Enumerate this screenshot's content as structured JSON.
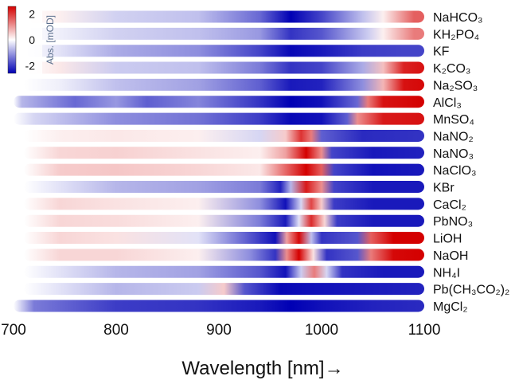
{
  "chart_data": {
    "type": "heatmap",
    "title": "",
    "xlabel": "Wavelength [nm]→",
    "ylabel": "",
    "xlim": [
      700,
      1100
    ],
    "x_ticks": [
      700,
      800,
      900,
      1000,
      1100
    ],
    "colorbar": {
      "label": "Abs. [mOD]",
      "ticks": [
        2,
        0,
        -2
      ],
      "range": [
        -2.6,
        2.6
      ],
      "colors": {
        "positive": "#d40000",
        "zero": "#ffffff",
        "negative": "#0000b4"
      }
    },
    "rows": [
      {
        "label": "NaHCO₃",
        "pattern": [
          [
            745,
            0.1
          ],
          [
            800,
            -0.35
          ],
          [
            880,
            -0.5
          ],
          [
            940,
            -1.4
          ],
          [
            970,
            -2.6
          ],
          [
            1000,
            -1.8
          ],
          [
            1040,
            -0.5
          ],
          [
            1060,
            0.1
          ],
          [
            1090,
            1.5
          ],
          [
            1100,
            1.5
          ]
        ]
      },
      {
        "label": "KH₂PO₄",
        "pattern": [
          [
            745,
            -0.1
          ],
          [
            800,
            -0.35
          ],
          [
            880,
            -0.5
          ],
          [
            940,
            -0.9
          ],
          [
            970,
            -2.0
          ],
          [
            1000,
            -1.6
          ],
          [
            1045,
            -0.4
          ],
          [
            1060,
            0.1
          ],
          [
            1090,
            1.2
          ],
          [
            1100,
            1.2
          ]
        ]
      },
      {
        "label": "KF",
        "pattern": [
          [
            745,
            -0.2
          ],
          [
            800,
            -0.7
          ],
          [
            880,
            -1.0
          ],
          [
            940,
            -1.8
          ],
          [
            970,
            -2.5
          ],
          [
            1000,
            -2.3
          ],
          [
            1040,
            -1.9
          ],
          [
            1080,
            -1.8
          ],
          [
            1100,
            -1.8
          ]
        ]
      },
      {
        "label": "K₂CO₃",
        "pattern": [
          [
            745,
            0.15
          ],
          [
            800,
            -0.4
          ],
          [
            880,
            -0.5
          ],
          [
            940,
            -1.2
          ],
          [
            970,
            -2.0
          ],
          [
            1000,
            -1.8
          ],
          [
            1040,
            -0.7
          ],
          [
            1060,
            0.5
          ],
          [
            1080,
            2.2
          ],
          [
            1100,
            2.4
          ]
        ]
      },
      {
        "label": "Na₂SO₃",
        "pattern": [
          [
            745,
            -0.1
          ],
          [
            800,
            -0.5
          ],
          [
            880,
            -0.8
          ],
          [
            940,
            -1.5
          ],
          [
            970,
            -2.3
          ],
          [
            1000,
            -2.2
          ],
          [
            1040,
            -1.0
          ],
          [
            1060,
            0.6
          ],
          [
            1080,
            2.4
          ],
          [
            1100,
            2.5
          ]
        ]
      },
      {
        "label": "AlCl₃",
        "pattern": [
          [
            708,
            -0.6
          ],
          [
            760,
            -1.4
          ],
          [
            800,
            -0.9
          ],
          [
            830,
            -1.5
          ],
          [
            880,
            -1.1
          ],
          [
            940,
            -2.0
          ],
          [
            970,
            -2.6
          ],
          [
            1000,
            -2.4
          ],
          [
            1035,
            -1.4
          ],
          [
            1045,
            1.2
          ],
          [
            1060,
            2.4
          ],
          [
            1100,
            2.6
          ]
        ]
      },
      {
        "label": "MnSO₄",
        "pattern": [
          [
            720,
            -0.3
          ],
          [
            800,
            -1.0
          ],
          [
            880,
            -1.3
          ],
          [
            940,
            -1.9
          ],
          [
            970,
            -2.5
          ],
          [
            1000,
            -2.4
          ],
          [
            1025,
            -1.5
          ],
          [
            1035,
            1.0
          ],
          [
            1060,
            2.3
          ],
          [
            1100,
            2.4
          ]
        ]
      },
      {
        "label": "NaNO₂",
        "pattern": [
          [
            745,
            0.1
          ],
          [
            800,
            0.15
          ],
          [
            880,
            0.1
          ],
          [
            940,
            -0.3
          ],
          [
            965,
            0.4
          ],
          [
            980,
            2.0
          ],
          [
            990,
            1.2
          ],
          [
            1000,
            -1.5
          ],
          [
            1040,
            -2.1
          ],
          [
            1100,
            -2.0
          ]
        ]
      },
      {
        "label": "NaNO₃",
        "pattern": [
          [
            745,
            0.3
          ],
          [
            800,
            0.35
          ],
          [
            880,
            0.2
          ],
          [
            940,
            0.1
          ],
          [
            965,
            0.8
          ],
          [
            985,
            2.6
          ],
          [
            1000,
            1.0
          ],
          [
            1010,
            -1.8
          ],
          [
            1050,
            -2.3
          ],
          [
            1100,
            -2.2
          ]
        ]
      },
      {
        "label": "NaClO₃",
        "pattern": [
          [
            745,
            0.4
          ],
          [
            800,
            0.45
          ],
          [
            880,
            0.3
          ],
          [
            940,
            0.15
          ],
          [
            965,
            1.4
          ],
          [
            985,
            2.6
          ],
          [
            1000,
            1.5
          ],
          [
            1012,
            -1.8
          ],
          [
            1050,
            -2.4
          ],
          [
            1100,
            -2.3
          ]
        ]
      },
      {
        "label": "KBr",
        "pattern": [
          [
            745,
            -0.2
          ],
          [
            800,
            -0.6
          ],
          [
            880,
            -0.8
          ],
          [
            940,
            -1.2
          ],
          [
            960,
            -2.2
          ],
          [
            970,
            -0.6
          ],
          [
            985,
            2.3
          ],
          [
            1000,
            1.0
          ],
          [
            1012,
            -1.8
          ],
          [
            1050,
            -2.3
          ],
          [
            1100,
            -2.3
          ]
        ]
      },
      {
        "label": "CaCl₂",
        "pattern": [
          [
            745,
            0.3
          ],
          [
            800,
            0.2
          ],
          [
            880,
            0.1
          ],
          [
            940,
            -1.0
          ],
          [
            965,
            -2.4
          ],
          [
            980,
            -0.3
          ],
          [
            990,
            1.8
          ],
          [
            1000,
            0.4
          ],
          [
            1012,
            -1.9
          ],
          [
            1050,
            -2.3
          ],
          [
            1100,
            -2.3
          ]
        ]
      },
      {
        "label": "PbNO₃",
        "pattern": [
          [
            745,
            0.3
          ],
          [
            800,
            0.25
          ],
          [
            880,
            0.1
          ],
          [
            940,
            -1.2
          ],
          [
            965,
            -2.3
          ],
          [
            978,
            -0.2
          ],
          [
            990,
            2.1
          ],
          [
            1003,
            0.3
          ],
          [
            1015,
            -1.9
          ],
          [
            1050,
            -2.3
          ],
          [
            1100,
            -2.3
          ]
        ]
      },
      {
        "label": "LiOH",
        "pattern": [
          [
            745,
            0.3
          ],
          [
            800,
            0.2
          ],
          [
            880,
            -0.2
          ],
          [
            930,
            -1.6
          ],
          [
            955,
            -2.4
          ],
          [
            966,
            0.8
          ],
          [
            978,
            2.5
          ],
          [
            990,
            -0.5
          ],
          [
            1000,
            -2.0
          ],
          [
            1035,
            -1.6
          ],
          [
            1048,
            1.5
          ],
          [
            1070,
            2.6
          ],
          [
            1100,
            2.6
          ]
        ]
      },
      {
        "label": "NaOH",
        "pattern": [
          [
            745,
            0.3
          ],
          [
            800,
            0.3
          ],
          [
            880,
            0.1
          ],
          [
            930,
            -1.0
          ],
          [
            955,
            -2.0
          ],
          [
            966,
            1.0
          ],
          [
            978,
            2.6
          ],
          [
            992,
            0.2
          ],
          [
            1005,
            -2.0
          ],
          [
            1035,
            -1.6
          ],
          [
            1048,
            1.2
          ],
          [
            1070,
            2.5
          ],
          [
            1100,
            2.6
          ]
        ]
      },
      {
        "label": "NH₄I",
        "pattern": [
          [
            745,
            -0.2
          ],
          [
            800,
            -0.6
          ],
          [
            880,
            -0.8
          ],
          [
            940,
            -1.6
          ],
          [
            965,
            -2.4
          ],
          [
            980,
            -0.4
          ],
          [
            993,
            1.2
          ],
          [
            1005,
            -0.3
          ],
          [
            1020,
            -2.0
          ],
          [
            1060,
            -2.3
          ],
          [
            1100,
            -2.3
          ]
        ]
      },
      {
        "label": "Pb(CH₃CO₂)₂",
        "pattern": [
          [
            745,
            -0.2
          ],
          [
            800,
            -0.6
          ],
          [
            880,
            -0.4
          ],
          [
            905,
            0.4
          ],
          [
            925,
            -1.6
          ],
          [
            960,
            -2.5
          ],
          [
            1000,
            -2.4
          ],
          [
            1040,
            -2.3
          ],
          [
            1100,
            -2.2
          ]
        ]
      },
      {
        "label": "MgCl₂",
        "pattern": [
          [
            720,
            -1.2
          ],
          [
            800,
            -1.9
          ],
          [
            880,
            -2.0
          ],
          [
            940,
            -2.3
          ],
          [
            970,
            -2.6
          ],
          [
            1000,
            -2.4
          ],
          [
            1050,
            -2.2
          ],
          [
            1100,
            -2.1
          ]
        ]
      }
    ]
  }
}
